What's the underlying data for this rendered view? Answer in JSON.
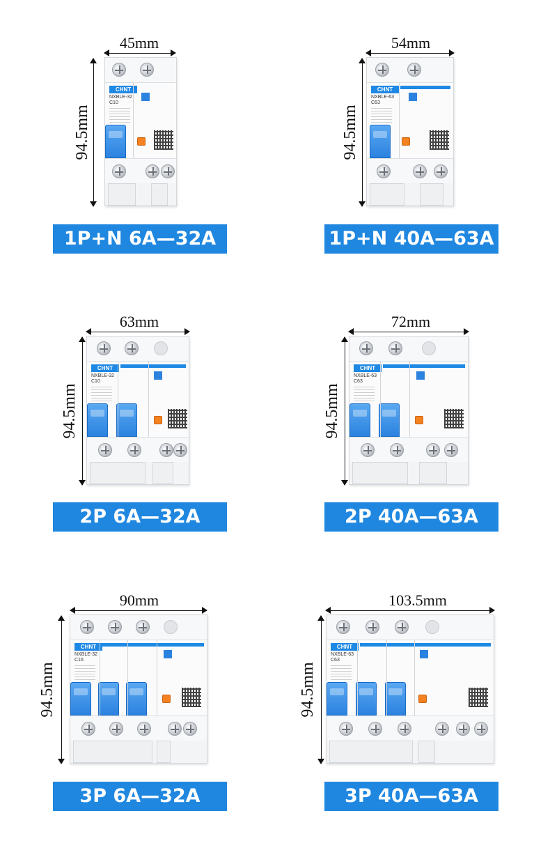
{
  "panels": [
    {
      "width_label": "45mm",
      "height_label": "94.5mm",
      "brand": "CHNT",
      "model": "NXBLE-32",
      "rating": "C10",
      "title": "1P+N 6A—32A"
    },
    {
      "width_label": "54mm",
      "height_label": "94.5mm",
      "brand": "CHNT",
      "model": "NXBLE-63",
      "rating": "C63",
      "title": "1P+N 40A—63A"
    },
    {
      "width_label": "63mm",
      "height_label": "94.5mm",
      "brand": "CHNT",
      "model": "NXBLE-32",
      "rating": "C10",
      "title": "2P 6A—32A"
    },
    {
      "width_label": "72mm",
      "height_label": "94.5mm",
      "brand": "CHNT",
      "model": "NXBLE-63",
      "rating": "C63",
      "title": "2P 40A—63A"
    },
    {
      "width_label": "90mm",
      "height_label": "94.5mm",
      "brand": "CHNT",
      "model": "NXBLE-32",
      "rating": "C16",
      "title": "3P 6A—32A"
    },
    {
      "width_label": "103.5mm",
      "height_label": "94.5mm",
      "brand": "CHNT",
      "model": "NXBLE-63",
      "rating": "C63",
      "title": "3P 40A—63A"
    }
  ],
  "colors": {
    "accent": "#1f87e0",
    "toggle": "#2c82df",
    "test_button": "#f58220"
  }
}
